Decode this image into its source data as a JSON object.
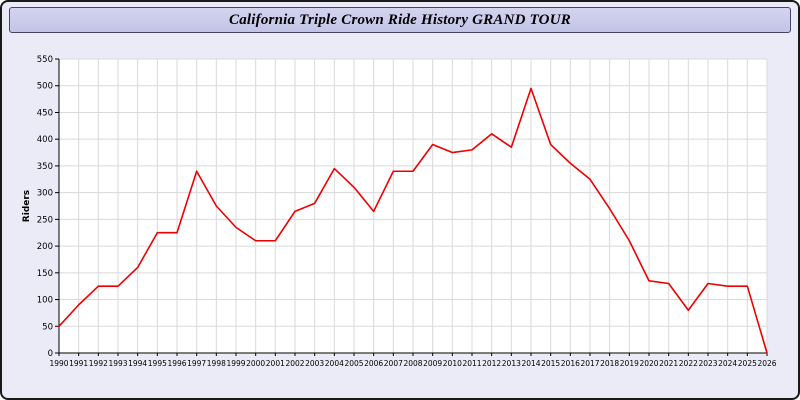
{
  "title": "California Triple Crown Ride History GRAND TOUR",
  "colors": {
    "page_bg": "#ebebf7",
    "header_bg": "#c9c9ea",
    "grid": "#d9d9d9",
    "axis": "#000000",
    "line": "#ee0000",
    "plot_bg": "#ffffff"
  },
  "chart_data": {
    "type": "line",
    "title": "California Triple Crown Ride History GRAND TOUR",
    "xlabel": "",
    "ylabel": "Riders",
    "ylim": [
      0,
      550
    ],
    "y_tick_step": 50,
    "grid": true,
    "legend": "none",
    "line_color": "#ee0000",
    "x": [
      1990,
      1991,
      1992,
      1993,
      1994,
      1995,
      1996,
      1997,
      1998,
      1999,
      2000,
      2001,
      2002,
      2003,
      2004,
      2005,
      2006,
      2007,
      2008,
      2009,
      2010,
      2011,
      2012,
      2013,
      2014,
      2015,
      2016,
      2017,
      2018,
      2019,
      2020,
      2021,
      2022,
      2023,
      2024,
      2025,
      2026
    ],
    "values": [
      50,
      90,
      125,
      125,
      160,
      225,
      225,
      340,
      275,
      235,
      210,
      210,
      265,
      280,
      345,
      310,
      265,
      340,
      340,
      390,
      375,
      380,
      410,
      385,
      495,
      390,
      355,
      325,
      270,
      210,
      135,
      130,
      80,
      130,
      125,
      125,
      0
    ]
  }
}
